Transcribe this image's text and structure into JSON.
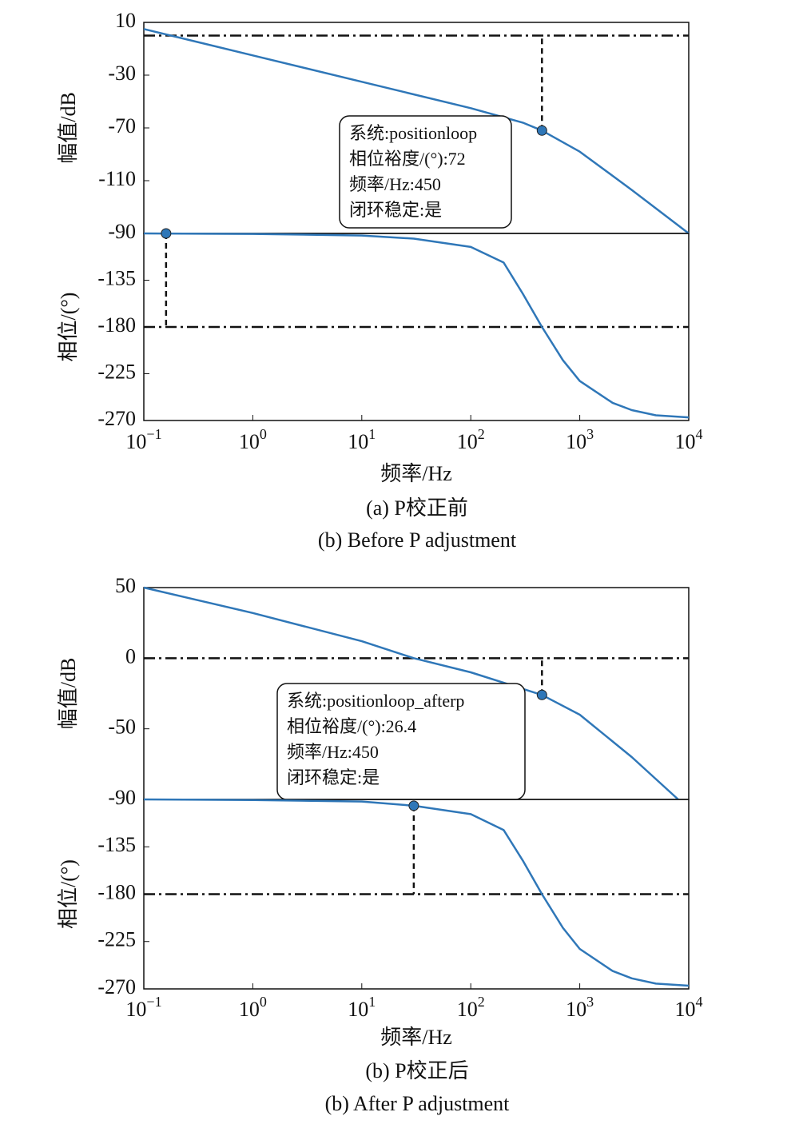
{
  "chart_data": [
    {
      "type": "line",
      "ylabel": "幅值/dB",
      "xscale": "log",
      "xlim": [
        0.1,
        10000
      ],
      "ylim": [
        -150,
        10
      ],
      "yticks": [
        10,
        -30,
        -70,
        -110
      ],
      "series": [
        {
          "color": "#2f77b8",
          "x": [
            0.1,
            1,
            10,
            100,
            300,
            450,
            1000,
            3000,
            10000
          ],
          "values": [
            5,
            -15,
            -35,
            -55,
            -66,
            -72,
            -88,
            -117,
            -150
          ]
        }
      ],
      "ref_line": 0,
      "marker": {
        "x": 450,
        "y": -72
      },
      "annotation": [
        "系统:positionloop",
        "相位裕度/(°):72",
        "频率/Hz:450",
        "闭环稳定:是"
      ]
    },
    {
      "type": "line",
      "ylabel": "相位/(°)",
      "xlabel": "频率/Hz",
      "xscale": "log",
      "xlim": [
        0.1,
        10000
      ],
      "ylim": [
        -270,
        -90
      ],
      "yticks": [
        -90,
        -135,
        -180,
        -225,
        -270
      ],
      "xticks": [
        {
          "value": 0.1,
          "label": "10",
          "sup": "−1"
        },
        {
          "value": 1,
          "label": "10",
          "sup": "0"
        },
        {
          "value": 10,
          "label": "10",
          "sup": "1"
        },
        {
          "value": 100,
          "label": "10",
          "sup": "2"
        },
        {
          "value": 1000,
          "label": "10",
          "sup": "3"
        },
        {
          "value": 10000,
          "label": "10",
          "sup": "4"
        }
      ],
      "series": [
        {
          "color": "#2f77b8",
          "x": [
            0.1,
            1,
            10,
            30,
            100,
            200,
            300,
            450,
            700,
            1000,
            2000,
            3000,
            5000,
            10000
          ],
          "values": [
            -90,
            -90.5,
            -92,
            -95,
            -103,
            -118,
            -148,
            -180,
            -212,
            -232,
            -253,
            -260,
            -265,
            -267
          ]
        }
      ],
      "ref_line": -180,
      "marker": {
        "x": 0.16,
        "y": -90
      },
      "caption": [
        "(a) P校正前",
        "(b) Before P adjustment"
      ]
    },
    {
      "type": "line",
      "ylabel": "幅值/dB",
      "xscale": "log",
      "xlim": [
        0.1,
        10000
      ],
      "ylim": [
        -100,
        50
      ],
      "yticks": [
        50,
        0,
        -50
      ],
      "series": [
        {
          "color": "#2f77b8",
          "x": [
            0.1,
            1,
            10,
            30,
            100,
            450,
            1000,
            3000,
            8000
          ],
          "values": [
            50,
            32,
            12,
            0,
            -10,
            -26,
            -40,
            -70,
            -100
          ]
        }
      ],
      "ref_line": 0,
      "marker": {
        "x": 450,
        "y": -26
      },
      "annotation": [
        "系统:positionloop_afterp",
        "相位裕度/(°):26.4",
        "频率/Hz:450",
        "闭环稳定:是"
      ]
    },
    {
      "type": "line",
      "ylabel": "相位/(°)",
      "xlabel": "频率/Hz",
      "xscale": "log",
      "xlim": [
        0.1,
        10000
      ],
      "ylim": [
        -270,
        -90
      ],
      "yticks": [
        -90,
        -135,
        -180,
        -225,
        -270
      ],
      "xticks": [
        {
          "value": 0.1,
          "label": "10",
          "sup": "−1"
        },
        {
          "value": 1,
          "label": "10",
          "sup": "0"
        },
        {
          "value": 10,
          "label": "10",
          "sup": "1"
        },
        {
          "value": 100,
          "label": "10",
          "sup": "2"
        },
        {
          "value": 1000,
          "label": "10",
          "sup": "3"
        },
        {
          "value": 10000,
          "label": "10",
          "sup": "4"
        }
      ],
      "series": [
        {
          "color": "#2f77b8",
          "x": [
            0.1,
            1,
            10,
            30,
            100,
            200,
            300,
            450,
            700,
            1000,
            2000,
            3000,
            5000,
            10000
          ],
          "values": [
            -90,
            -90.5,
            -92,
            -96,
            -104,
            -119,
            -148,
            -180,
            -212,
            -232,
            -253,
            -260,
            -265,
            -267
          ]
        }
      ],
      "ref_line": -180,
      "marker": {
        "x": 30,
        "y": -96
      },
      "caption": [
        "(b) P校正后",
        "(b) After P adjustment"
      ]
    }
  ]
}
